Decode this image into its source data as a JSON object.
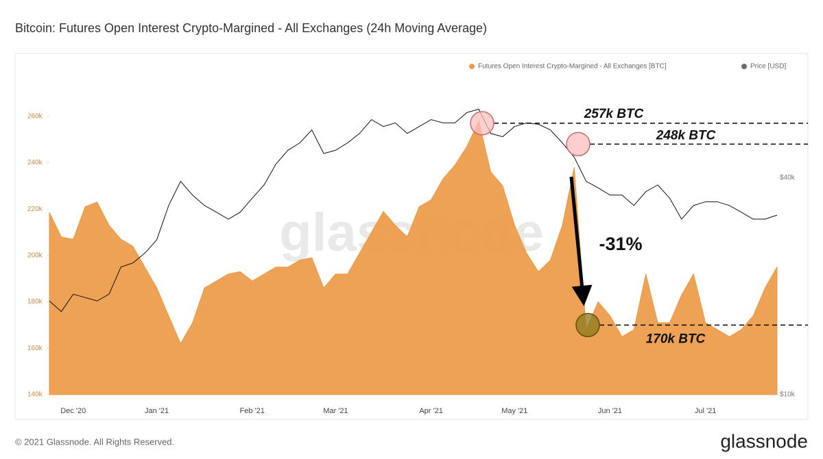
{
  "chart_data": {
    "type": "area-line",
    "title": "Bitcoin: Futures Open Interest Crypto-Margined - All Exchanges (24h Moving Average)",
    "watermark": "glassnode",
    "footer": "© 2021 Glassnode. All Rights Reserved.",
    "logo": "glassnode",
    "categories": [
      null,
      null,
      "Dec '20",
      null,
      null,
      null,
      null,
      null,
      null,
      "Jan '21",
      null,
      null,
      null,
      null,
      null,
      null,
      null,
      "Feb '21",
      null,
      null,
      null,
      null,
      null,
      null,
      "Mar '21",
      null,
      null,
      null,
      null,
      null,
      null,
      null,
      "Apr '21",
      null,
      null,
      null,
      null,
      null,
      null,
      "May '21",
      null,
      null,
      null,
      null,
      null,
      null,
      null,
      "Jun '21",
      null,
      null,
      null,
      null,
      null,
      null,
      null,
      "Jul '21",
      null,
      null,
      null,
      null,
      null,
      null
    ],
    "series": [
      {
        "name": "Futures Open Interest Crypto-Margined - All Exchanges [BTC]",
        "color": "#eb9a46",
        "axis": "y",
        "values": [
          218600,
          208000,
          207000,
          221000,
          223000,
          213000,
          207000,
          204000,
          195000,
          186000,
          174000,
          162000,
          171000,
          186000,
          189000,
          192000,
          193000,
          189000,
          192000,
          195000,
          195000,
          198000,
          199000,
          186000,
          192000,
          192000,
          201000,
          210000,
          219000,
          213000,
          208000,
          221000,
          224000,
          233000,
          239000,
          247000,
          258000,
          236000,
          230000,
          213000,
          201000,
          193000,
          198000,
          213000,
          238000,
          168000,
          180000,
          174000,
          165000,
          168000,
          192000,
          171000,
          171000,
          183000,
          192000,
          171000,
          168000,
          165000,
          168000,
          174000,
          186000,
          195000
        ]
      },
      {
        "name": "Price [USD]",
        "color": "#111111",
        "legend_color": "#6b6b6b",
        "axis": "y2",
        "values": [
          18200,
          17000,
          19000,
          18600,
          18200,
          19000,
          22600,
          23200,
          24700,
          26900,
          33500,
          39100,
          35800,
          33500,
          32100,
          30700,
          32100,
          35100,
          38200,
          43700,
          47700,
          50000,
          54300,
          46700,
          47700,
          50000,
          53100,
          58000,
          55500,
          56800,
          53100,
          55500,
          58000,
          56800,
          56800,
          60700,
          62000,
          53100,
          52000,
          55500,
          56800,
          56300,
          54300,
          50000,
          45600,
          39100,
          37500,
          35800,
          35800,
          33500,
          36600,
          38200,
          35100,
          30700,
          33500,
          34300,
          34300,
          33500,
          32100,
          30700,
          30700,
          31500
        ]
      }
    ],
    "ylim": [
      140000,
      275000
    ],
    "yticks": [
      {
        "value": 140000,
        "label": "140k"
      },
      {
        "value": 160000,
        "label": "160k"
      },
      {
        "value": 180000,
        "label": "180k"
      },
      {
        "value": 200000,
        "label": "200k"
      },
      {
        "value": 220000,
        "label": "220k"
      },
      {
        "value": 240000,
        "label": "240k"
      },
      {
        "value": 260000,
        "label": "260k"
      }
    ],
    "y2lim": [
      10000,
      74000
    ],
    "y2log": true,
    "y2ticks": [
      {
        "value": 10000,
        "label": "$10k"
      },
      {
        "value": 40000,
        "label": "$40k"
      }
    ],
    "legend": "top-right",
    "grid": false,
    "annotations": [
      {
        "label": "257k BTC",
        "value": 257000
      },
      {
        "label": "248k BTC",
        "value": 248000
      },
      {
        "label": "170k BTC",
        "value": 170000
      },
      {
        "label": "-31%"
      }
    ]
  }
}
